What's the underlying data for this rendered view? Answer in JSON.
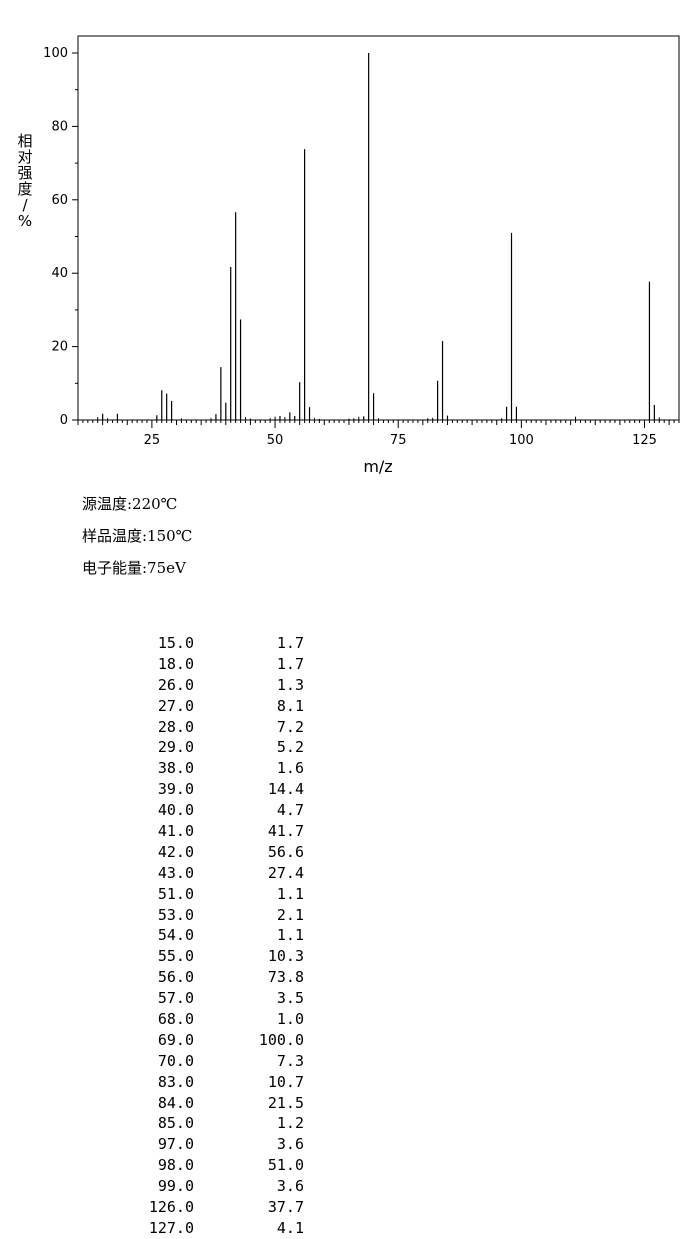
{
  "chart_data": {
    "type": "bar",
    "xlabel": "m/z",
    "ylabel": "相对强度/%",
    "xlim": [
      10,
      132
    ],
    "ylim": [
      0,
      100
    ],
    "x_ticks": [
      25,
      50,
      75,
      100,
      125
    ],
    "y_ticks": [
      0,
      20,
      40,
      60,
      80,
      100
    ],
    "grid": false,
    "peaks": [
      {
        "mz": 15.0,
        "intensity": 1.7
      },
      {
        "mz": 18.0,
        "intensity": 1.7
      },
      {
        "mz": 26.0,
        "intensity": 1.3
      },
      {
        "mz": 27.0,
        "intensity": 8.1
      },
      {
        "mz": 28.0,
        "intensity": 7.2
      },
      {
        "mz": 29.0,
        "intensity": 5.2
      },
      {
        "mz": 38.0,
        "intensity": 1.6
      },
      {
        "mz": 39.0,
        "intensity": 14.4
      },
      {
        "mz": 40.0,
        "intensity": 4.7
      },
      {
        "mz": 41.0,
        "intensity": 41.7
      },
      {
        "mz": 42.0,
        "intensity": 56.6
      },
      {
        "mz": 43.0,
        "intensity": 27.4
      },
      {
        "mz": 51.0,
        "intensity": 1.1
      },
      {
        "mz": 53.0,
        "intensity": 2.1
      },
      {
        "mz": 54.0,
        "intensity": 1.1
      },
      {
        "mz": 55.0,
        "intensity": 10.3
      },
      {
        "mz": 56.0,
        "intensity": 73.8
      },
      {
        "mz": 57.0,
        "intensity": 3.5
      },
      {
        "mz": 68.0,
        "intensity": 1.0
      },
      {
        "mz": 69.0,
        "intensity": 100.0
      },
      {
        "mz": 70.0,
        "intensity": 7.3
      },
      {
        "mz": 83.0,
        "intensity": 10.7
      },
      {
        "mz": 84.0,
        "intensity": 21.5
      },
      {
        "mz": 85.0,
        "intensity": 1.2
      },
      {
        "mz": 97.0,
        "intensity": 3.6
      },
      {
        "mz": 98.0,
        "intensity": 51.0
      },
      {
        "mz": 99.0,
        "intensity": 3.6
      },
      {
        "mz": 126.0,
        "intensity": 37.7
      },
      {
        "mz": 127.0,
        "intensity": 4.1
      }
    ],
    "minor_peaks": [
      {
        "mz": 14,
        "intensity": 0.8
      },
      {
        "mz": 16,
        "intensity": 0.5
      },
      {
        "mz": 31,
        "intensity": 0.5
      },
      {
        "mz": 37,
        "intensity": 0.5
      },
      {
        "mz": 44,
        "intensity": 0.8
      },
      {
        "mz": 45,
        "intensity": 0.4
      },
      {
        "mz": 49,
        "intensity": 0.5
      },
      {
        "mz": 50,
        "intensity": 0.9
      },
      {
        "mz": 52,
        "intensity": 0.8
      },
      {
        "mz": 58,
        "intensity": 0.6
      },
      {
        "mz": 59,
        "intensity": 0.3
      },
      {
        "mz": 65,
        "intensity": 0.4
      },
      {
        "mz": 66,
        "intensity": 0.5
      },
      {
        "mz": 67,
        "intensity": 0.9
      },
      {
        "mz": 71,
        "intensity": 0.5
      },
      {
        "mz": 81,
        "intensity": 0.5
      },
      {
        "mz": 82,
        "intensity": 0.6
      },
      {
        "mz": 96,
        "intensity": 0.5
      },
      {
        "mz": 111,
        "intensity": 0.9
      },
      {
        "mz": 128,
        "intensity": 0.7
      }
    ]
  },
  "conditions": {
    "source_temp": "源温度:220℃",
    "sample_temp": "样品温度:150℃",
    "electron_energy": "电子能量:75eV"
  },
  "peak_table": [
    {
      "mz": "15.0",
      "intensity": "1.7"
    },
    {
      "mz": "18.0",
      "intensity": "1.7"
    },
    {
      "mz": "26.0",
      "intensity": "1.3"
    },
    {
      "mz": "27.0",
      "intensity": "8.1"
    },
    {
      "mz": "28.0",
      "intensity": "7.2"
    },
    {
      "mz": "29.0",
      "intensity": "5.2"
    },
    {
      "mz": "38.0",
      "intensity": "1.6"
    },
    {
      "mz": "39.0",
      "intensity": "14.4"
    },
    {
      "mz": "40.0",
      "intensity": "4.7"
    },
    {
      "mz": "41.0",
      "intensity": "41.7"
    },
    {
      "mz": "42.0",
      "intensity": "56.6"
    },
    {
      "mz": "43.0",
      "intensity": "27.4"
    },
    {
      "mz": "51.0",
      "intensity": "1.1"
    },
    {
      "mz": "53.0",
      "intensity": "2.1"
    },
    {
      "mz": "54.0",
      "intensity": "1.1"
    },
    {
      "mz": "55.0",
      "intensity": "10.3"
    },
    {
      "mz": "56.0",
      "intensity": "73.8"
    },
    {
      "mz": "57.0",
      "intensity": "3.5"
    },
    {
      "mz": "68.0",
      "intensity": "1.0"
    },
    {
      "mz": "69.0",
      "intensity": "100.0"
    },
    {
      "mz": "70.0",
      "intensity": "7.3"
    },
    {
      "mz": "83.0",
      "intensity": "10.7"
    },
    {
      "mz": "84.0",
      "intensity": "21.5"
    },
    {
      "mz": "85.0",
      "intensity": "1.2"
    },
    {
      "mz": "97.0",
      "intensity": "3.6"
    },
    {
      "mz": "98.0",
      "intensity": "51.0"
    },
    {
      "mz": "99.0",
      "intensity": "3.6"
    },
    {
      "mz": "126.0",
      "intensity": "37.7"
    },
    {
      "mz": "127.0",
      "intensity": "4.1"
    }
  ]
}
